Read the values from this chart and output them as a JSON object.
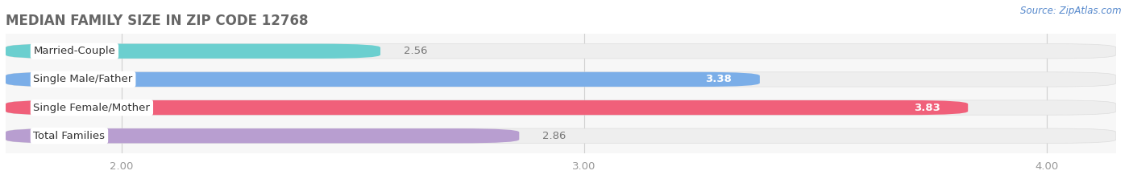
{
  "title": "MEDIAN FAMILY SIZE IN ZIP CODE 12768",
  "source": "Source: ZipAtlas.com",
  "categories": [
    "Married-Couple",
    "Single Male/Father",
    "Single Female/Mother",
    "Total Families"
  ],
  "values": [
    2.56,
    3.38,
    3.83,
    2.86
  ],
  "bar_colors": [
    "#6bcfcf",
    "#7baee8",
    "#f0607a",
    "#b89ed0"
  ],
  "bar_bg_color": "#eeeeee",
  "value_colors": [
    "#888888",
    "#ffffff",
    "#ffffff",
    "#888888"
  ],
  "xlim_left": 1.75,
  "xlim_right": 4.15,
  "xticks": [
    2.0,
    3.0,
    4.0
  ],
  "xtick_labels": [
    "2.00",
    "3.00",
    "4.00"
  ],
  "label_fontsize": 9.5,
  "title_fontsize": 12,
  "value_fontsize": 9.5,
  "source_fontsize": 8.5,
  "bg_color": "#ffffff",
  "plot_bg_color": "#f7f7f7",
  "bar_height": 0.52,
  "bar_gap": 0.14
}
